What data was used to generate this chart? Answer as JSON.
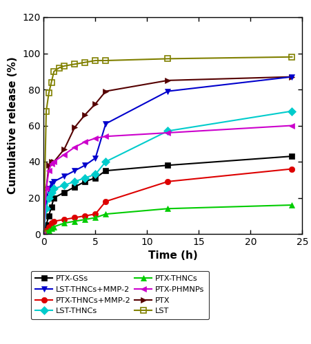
{
  "title": "",
  "xlabel": "Time (h)",
  "ylabel": "Cumulative release (%)",
  "xlim": [
    0,
    25
  ],
  "ylim": [
    0,
    120
  ],
  "xticks": [
    0,
    5,
    10,
    15,
    20,
    25
  ],
  "yticks": [
    0,
    20,
    40,
    60,
    80,
    100,
    120
  ],
  "series": [
    {
      "label": "PTX-GSs",
      "color": "#000000",
      "marker": "s",
      "marker_filled": true,
      "x": [
        0,
        0.25,
        0.5,
        0.75,
        1,
        2,
        3,
        4,
        5,
        6,
        12,
        24
      ],
      "y": [
        0,
        5,
        10,
        15,
        20,
        23,
        26,
        29,
        31,
        35,
        38,
        43
      ]
    },
    {
      "label": "PTX-THNCs+MMP-2",
      "color": "#dd0000",
      "marker": "o",
      "marker_filled": true,
      "x": [
        0,
        0.25,
        0.5,
        0.75,
        1,
        2,
        3,
        4,
        5,
        6,
        12,
        24
      ],
      "y": [
        0,
        2,
        4,
        6,
        7,
        8,
        9,
        10,
        11,
        18,
        29,
        36
      ]
    },
    {
      "label": "PTX-THNCs",
      "color": "#00cc00",
      "marker": "^",
      "marker_filled": true,
      "x": [
        0,
        0.25,
        0.5,
        0.75,
        1,
        2,
        3,
        4,
        5,
        6,
        12,
        24
      ],
      "y": [
        0,
        1,
        2,
        3,
        4,
        6,
        7,
        8,
        9,
        11,
        14,
        16
      ]
    },
    {
      "label": "PTX",
      "color": "#550000",
      "marker": ">",
      "marker_filled": true,
      "x": [
        0,
        0.25,
        0.5,
        0.75,
        1,
        2,
        3,
        4,
        5,
        6,
        12,
        24
      ],
      "y": [
        0,
        25,
        38,
        40,
        40,
        47,
        59,
        66,
        72,
        79,
        85,
        87
      ]
    },
    {
      "label": "LST-THNCs+MMP-2",
      "color": "#0000cc",
      "marker": "v",
      "marker_filled": true,
      "x": [
        0,
        0.25,
        0.5,
        0.75,
        1,
        2,
        3,
        4,
        5,
        6,
        12,
        24
      ],
      "y": [
        0,
        18,
        25,
        28,
        29,
        32,
        35,
        38,
        42,
        61,
        79,
        87
      ]
    },
    {
      "label": "LST-THNCs",
      "color": "#00cccc",
      "marker": "D",
      "marker_filled": true,
      "x": [
        0,
        0.25,
        0.5,
        0.75,
        1,
        2,
        3,
        4,
        5,
        6,
        12,
        24
      ],
      "y": [
        0,
        14,
        20,
        23,
        25,
        27,
        29,
        31,
        33,
        40,
        57,
        68
      ]
    },
    {
      "label": "PTX-PHMNPs",
      "color": "#cc00cc",
      "marker": "<",
      "marker_filled": true,
      "x": [
        0,
        0.25,
        0.5,
        0.75,
        1,
        2,
        3,
        4,
        5,
        6,
        12,
        24
      ],
      "y": [
        0,
        25,
        35,
        39,
        40,
        44,
        48,
        51,
        53,
        54,
        56,
        60
      ]
    },
    {
      "label": "LST",
      "color": "#808000",
      "marker": "s",
      "marker_filled": false,
      "x": [
        0,
        0.25,
        0.5,
        0.75,
        1,
        1.5,
        2,
        3,
        4,
        5,
        6,
        12,
        24
      ],
      "y": [
        0,
        68,
        78,
        84,
        90,
        92,
        93,
        94,
        95,
        96,
        96,
        97,
        98
      ]
    }
  ],
  "legend_order": [
    0,
    4,
    1,
    5,
    2,
    6,
    3,
    7
  ],
  "figsize": [
    4.52,
    5.0
  ],
  "dpi": 100
}
